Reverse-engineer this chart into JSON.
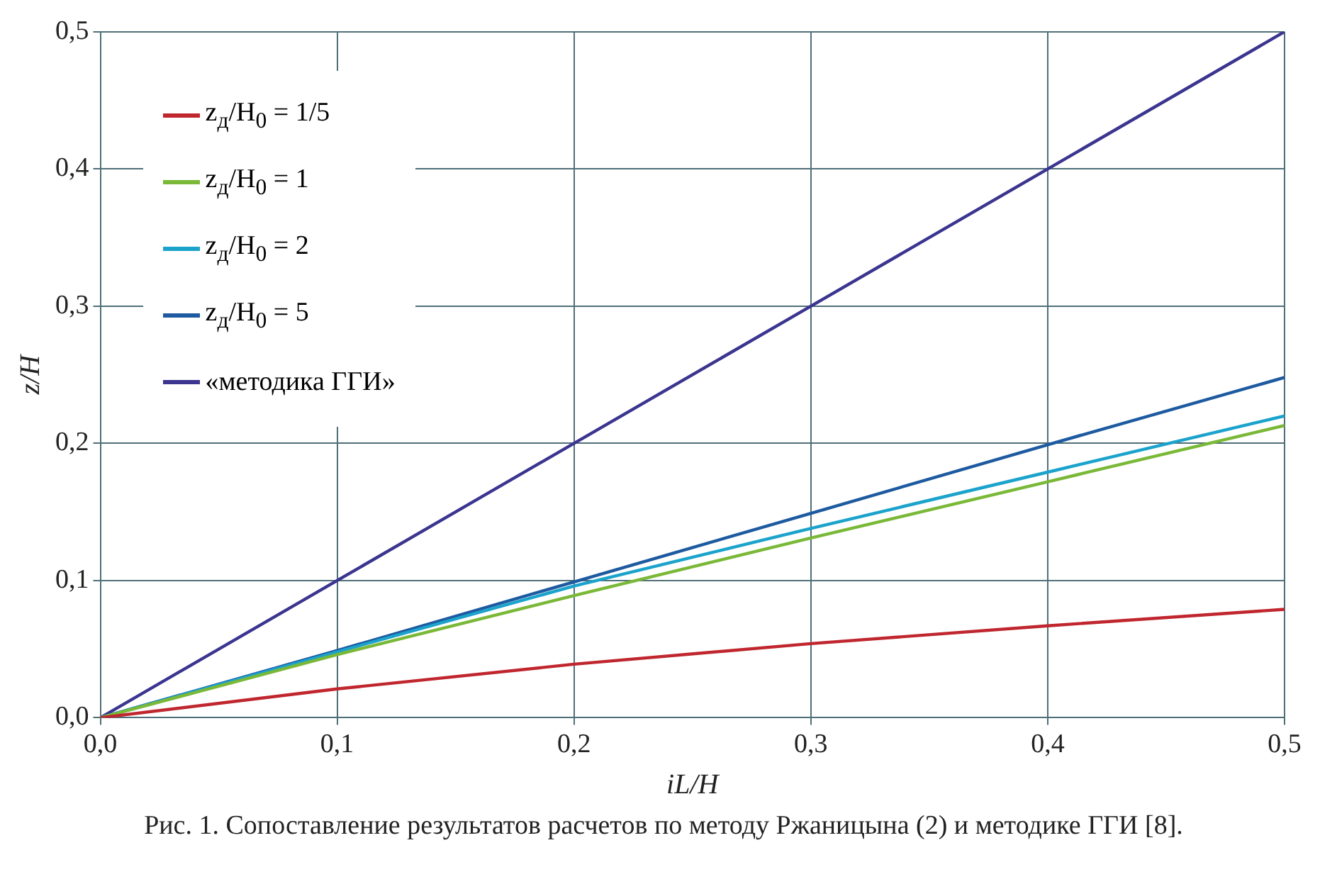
{
  "chart_data": {
    "type": "line",
    "xlabel": "iL/H",
    "ylabel": "z/H",
    "x": [
      0,
      0.1,
      0.2,
      0.3,
      0.4,
      0.5
    ],
    "series": [
      {
        "name": "z$_{д}$/H$_{0}$ = 1/5",
        "color": "#c0262e",
        "values": [
          0,
          0.021,
          0.039,
          0.054,
          0.067,
          0.079
        ]
      },
      {
        "name": "z$_{д}$/H$_{0}$ = 1",
        "color": "#7ab837",
        "values": [
          0,
          0.046,
          0.089,
          0.131,
          0.172,
          0.213
        ]
      },
      {
        "name": "z$_{д}$/H$_{0}$ = 2",
        "color": "#1ba3cc",
        "values": [
          0,
          0.048,
          0.096,
          0.138,
          0.179,
          0.22
        ]
      },
      {
        "name": "z$_{д}$/H$_{0}$ = 5",
        "color": "#1d5aa0",
        "values": [
          0,
          0.049,
          0.099,
          0.149,
          0.199,
          0.248
        ]
      },
      {
        "name": "«методика ГГИ»",
        "color": "#3b3590",
        "values": [
          0,
          0.1,
          0.2,
          0.3,
          0.4,
          0.5
        ]
      }
    ],
    "xlim": [
      0,
      0.5
    ],
    "ylim": [
      0,
      0.5
    ],
    "xticks": [
      {
        "value": 0,
        "label": "0,0"
      },
      {
        "value": 0.1,
        "label": "0,1"
      },
      {
        "value": 0.2,
        "label": "0,2"
      },
      {
        "value": 0.3,
        "label": "0,3"
      },
      {
        "value": 0.4,
        "label": "0,4"
      },
      {
        "value": 0.5,
        "label": "0,5"
      }
    ],
    "yticks": [
      {
        "value": 0,
        "label": "0,0"
      },
      {
        "value": 0.1,
        "label": "0,1"
      },
      {
        "value": 0.2,
        "label": "0,2"
      },
      {
        "value": 0.3,
        "label": "0,3"
      },
      {
        "value": 0.4,
        "label": "0,4"
      },
      {
        "value": 0.5,
        "label": "0,5"
      }
    ],
    "grid": true,
    "legend": "top left",
    "marker": "none",
    "line_style": "solid",
    "annotations": [
      "Рис. 1. Сопоставление результатов расчетов по методу Ржаницына (2) и методике ГГИ [8]."
    ]
  }
}
